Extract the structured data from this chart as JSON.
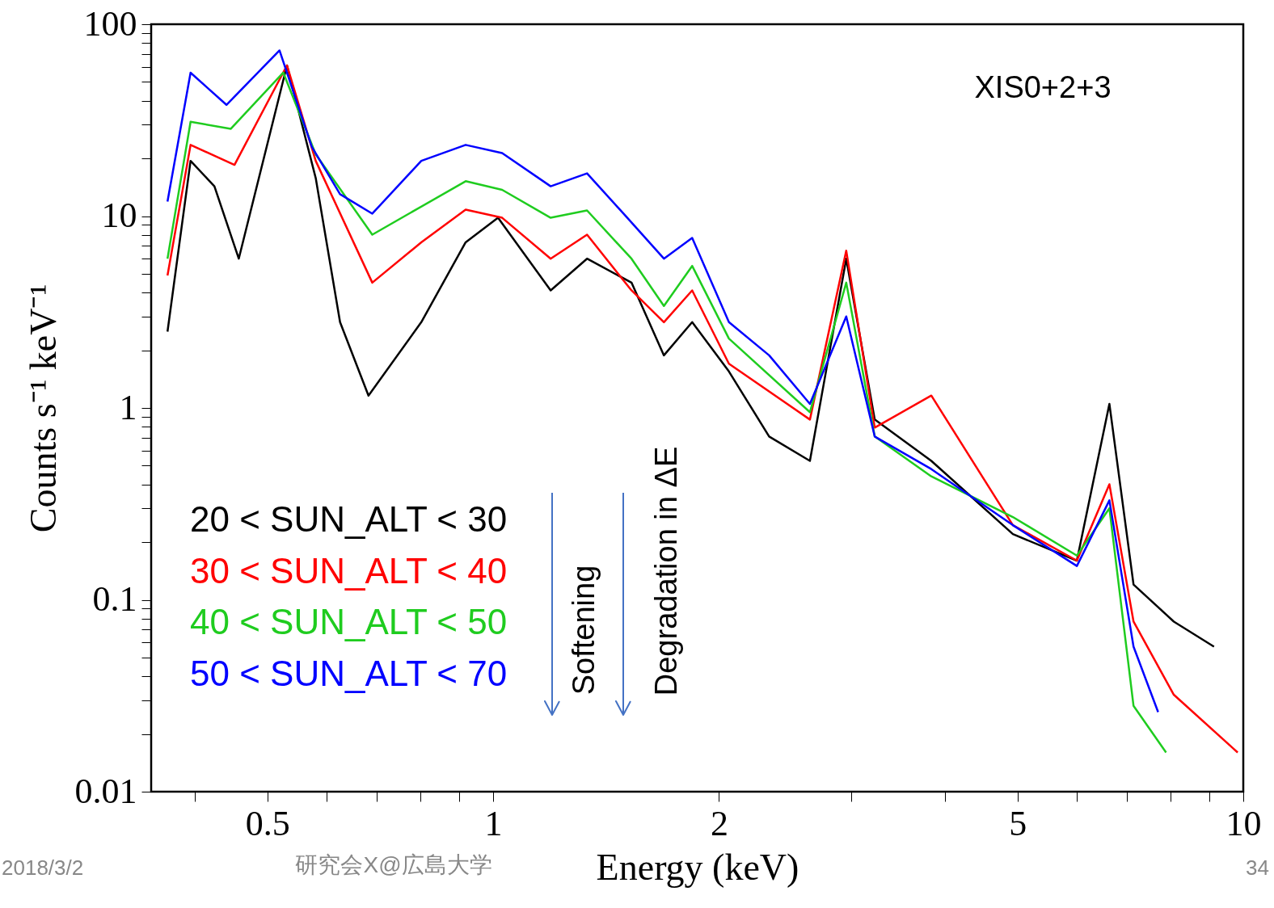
{
  "chart_data": {
    "type": "line",
    "xlabel": "Energy (keV)",
    "ylabel": "Counts s⁻¹ keV⁻¹",
    "log": "xy",
    "grid": false,
    "legend": "bottom left",
    "line_style": "solid",
    "marker": "none",
    "xlim": [
      0.35,
      10
    ],
    "ylim": [
      0.01,
      100
    ],
    "xticks": [
      {
        "value": 0.4,
        "label": null
      },
      0.5,
      {
        "value": 0.6,
        "label": null
      },
      {
        "value": 0.7,
        "label": null
      },
      {
        "value": 0.8,
        "label": null
      },
      {
        "value": 0.9,
        "label": null
      },
      1,
      2,
      {
        "value": 3,
        "label": null
      },
      {
        "value": 4,
        "label": null
      },
      5,
      {
        "value": 6,
        "label": null
      },
      {
        "value": 7,
        "label": null
      },
      {
        "value": 8,
        "label": null
      },
      {
        "value": 9,
        "label": null
      },
      10
    ],
    "yticks": [
      0.01,
      {
        "value": 0.02,
        "label": null
      },
      {
        "value": 0.03,
        "label": null
      },
      {
        "value": 0.04,
        "label": null
      },
      {
        "value": 0.05,
        "label": null
      },
      {
        "value": 0.06,
        "label": null
      },
      {
        "value": 0.07,
        "label": null
      },
      {
        "value": 0.08,
        "label": null
      },
      {
        "value": 0.09,
        "label": null
      },
      0.1,
      {
        "value": 0.2,
        "label": null
      },
      {
        "value": 0.3,
        "label": null
      },
      {
        "value": 0.4,
        "label": null
      },
      {
        "value": 0.5,
        "label": null
      },
      {
        "value": 0.6,
        "label": null
      },
      {
        "value": 0.7,
        "label": null
      },
      {
        "value": 0.8,
        "label": null
      },
      {
        "value": 0.9,
        "label": null
      },
      1,
      {
        "value": 2,
        "label": null
      },
      {
        "value": 3,
        "label": null
      },
      {
        "value": 4,
        "label": null
      },
      {
        "value": 5,
        "label": null
      },
      {
        "value": 6,
        "label": null
      },
      {
        "value": 7,
        "label": null
      },
      {
        "value": 8,
        "label": null
      },
      {
        "value": 9,
        "label": null
      },
      10,
      {
        "value": 20,
        "label": null
      },
      {
        "value": 30,
        "label": null
      },
      {
        "value": 40,
        "label": null
      },
      {
        "value": 50,
        "label": null
      },
      {
        "value": 60,
        "label": null
      },
      {
        "value": 70,
        "label": null
      },
      {
        "value": 80,
        "label": null
      },
      {
        "value": 90,
        "label": null
      },
      100
    ],
    "annotations": [
      "XIS0+2+3",
      "Softening",
      "Degradation in ΔE",
      "2018/3/2",
      "研究会X@広島大学",
      "34"
    ],
    "series": [
      {
        "name": "20 < SUN_ALT < 30",
        "color": "#000000",
        "x": [
          0.368,
          0.395,
          0.425,
          0.458,
          0.531,
          0.58,
          0.625,
          0.682,
          0.802,
          0.919,
          1.015,
          1.193,
          1.334,
          1.529,
          1.689,
          1.842,
          2.062,
          2.333,
          2.644,
          2.956,
          3.226,
          3.838,
          4.93,
          6.0,
          6.63,
          7.14,
          8.08,
          9.14
        ],
        "values": [
          2.5,
          19.4,
          14.3,
          6.0,
          61,
          15.8,
          2.8,
          1.16,
          2.8,
          7.3,
          9.8,
          4.1,
          6.0,
          4.5,
          1.88,
          2.8,
          1.55,
          0.71,
          0.53,
          6.0,
          0.87,
          0.53,
          0.22,
          0.16,
          1.05,
          0.12,
          0.077,
          0.057
        ]
      },
      {
        "name": "30 < SUN_ALT < 40",
        "color": "#ff0000",
        "x": [
          0.368,
          0.395,
          0.452,
          0.531,
          0.58,
          0.69,
          0.802,
          0.919,
          1.028,
          1.193,
          1.334,
          1.529,
          1.689,
          1.842,
          2.062,
          2.644,
          2.956,
          3.226,
          3.838,
          4.93,
          6.0,
          6.63,
          7.14,
          8.08,
          9.83
        ],
        "values": [
          4.9,
          23.5,
          18.5,
          61,
          19.4,
          4.5,
          7.3,
          10.8,
          9.8,
          6.0,
          8,
          4.1,
          2.8,
          4.1,
          1.7,
          0.87,
          6.6,
          0.79,
          1.16,
          0.245,
          0.16,
          0.4,
          0.077,
          0.032,
          0.016
        ]
      },
      {
        "name": "40 < SUN_ALT < 50",
        "color": "#1fcc1f",
        "x": [
          0.368,
          0.395,
          0.447,
          0.525,
          0.58,
          0.69,
          0.919,
          1.028,
          1.193,
          1.334,
          1.529,
          1.689,
          1.842,
          2.062,
          2.644,
          2.956,
          3.226,
          3.838,
          4.93,
          6.0,
          6.63,
          7.14,
          7.89
        ],
        "values": [
          6.0,
          31,
          28.5,
          56,
          21,
          8.0,
          15.2,
          13.7,
          9.8,
          10.7,
          6.0,
          3.4,
          5.5,
          2.3,
          0.95,
          4.5,
          0.71,
          0.44,
          0.27,
          0.17,
          0.3,
          0.028,
          0.016
        ]
      },
      {
        "name": "50 < SUN_ALT < 70",
        "color": "#0000ff",
        "x": [
          0.368,
          0.395,
          0.441,
          0.519,
          0.573,
          0.625,
          0.69,
          0.802,
          0.919,
          1.028,
          1.193,
          1.334,
          1.492,
          1.689,
          1.842,
          2.062,
          2.333,
          2.644,
          2.956,
          3.226,
          3.838,
          4.93,
          6.0,
          6.63,
          7.14,
          7.7
        ],
        "values": [
          11.9,
          55.9,
          38,
          73,
          23,
          13,
          10.3,
          19.4,
          23.5,
          21.3,
          14.3,
          16.7,
          10.3,
          6.0,
          7.7,
          2.8,
          1.88,
          1.05,
          3.0,
          0.71,
          0.48,
          0.245,
          0.15,
          0.33,
          0.057,
          0.026
        ]
      }
    ]
  }
}
